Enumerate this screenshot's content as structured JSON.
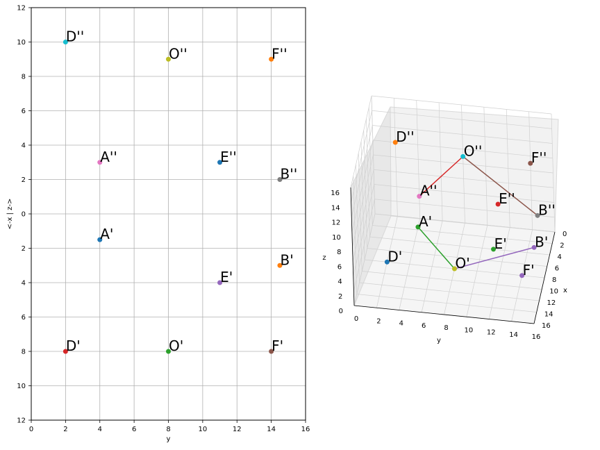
{
  "chart_data": [
    {
      "type": "scatter",
      "panel": "2d-projection",
      "title": "",
      "xlabel": "y",
      "ylabel": "<-x | z->",
      "xlim": [
        0,
        16
      ],
      "ylim": [
        -12,
        12
      ],
      "grid": true,
      "x_ticks": [
        "0",
        "2",
        "4",
        "6",
        "8",
        "10",
        "12",
        "14",
        "16"
      ],
      "y_ticks": [
        "12",
        "10",
        "8",
        "6",
        "4",
        "2",
        "0",
        "2",
        "4",
        "6",
        "8",
        "10",
        "12"
      ],
      "points": [
        {
          "label": "D''",
          "x": 2,
          "y": 10,
          "color": "#17becf"
        },
        {
          "label": "O''",
          "x": 8,
          "y": 9,
          "color": "#bcbd22"
        },
        {
          "label": "F''",
          "x": 14,
          "y": 9,
          "color": "#ff7f0e"
        },
        {
          "label": "A''",
          "x": 4,
          "y": 3,
          "color": "#e377c2"
        },
        {
          "label": "E''",
          "x": 11,
          "y": 3,
          "color": "#1f77b4"
        },
        {
          "label": "B''",
          "x": 14.5,
          "y": 2,
          "color": "#7f7f7f"
        },
        {
          "label": "A'",
          "x": 4,
          "y": -1.5,
          "color": "#1f77b4"
        },
        {
          "label": "B'",
          "x": 14.5,
          "y": -3,
          "color": "#ff7f0e"
        },
        {
          "label": "E'",
          "x": 11,
          "y": -4,
          "color": "#9467bd"
        },
        {
          "label": "D'",
          "x": 2,
          "y": -8,
          "color": "#d62728"
        },
        {
          "label": "O'",
          "x": 8,
          "y": -8,
          "color": "#2ca02c"
        },
        {
          "label": "F'",
          "x": 14,
          "y": -8,
          "color": "#8c564b"
        }
      ]
    },
    {
      "type": "scatter",
      "panel": "3d",
      "title": "",
      "xlabel": "x",
      "ylabel": "y",
      "zlabel": "z",
      "xlim": [
        0,
        16
      ],
      "ylim": [
        0,
        16
      ],
      "zlim": [
        0,
        16
      ],
      "grid": true,
      "x_ticks": [
        "0",
        "2",
        "4",
        "6",
        "8",
        "10",
        "12",
        "14",
        "16"
      ],
      "y_ticks": [
        "0",
        "2",
        "4",
        "6",
        "8",
        "10",
        "12",
        "14",
        "16"
      ],
      "z_ticks": [
        "0",
        "2",
        "4",
        "6",
        "8",
        "10",
        "12",
        "14",
        "16"
      ],
      "points": [
        {
          "label": "D''",
          "x": 0,
          "y": 2,
          "z": 10,
          "color": "#ff7f0e"
        },
        {
          "label": "O''",
          "x": 0,
          "y": 8,
          "z": 9,
          "color": "#17becf"
        },
        {
          "label": "F''",
          "x": 0,
          "y": 14,
          "z": 9,
          "color": "#8c564b"
        },
        {
          "label": "A''",
          "x": 0,
          "y": 4,
          "z": 3,
          "color": "#e377c2"
        },
        {
          "label": "E''",
          "x": 0,
          "y": 11,
          "z": 3,
          "color": "#d62728"
        },
        {
          "label": "B''",
          "x": 0,
          "y": 14.5,
          "z": 2,
          "color": "#7f7f7f"
        },
        {
          "label": "A'",
          "x": 1.5,
          "y": 4,
          "z": 0,
          "color": "#2ca02c"
        },
        {
          "label": "B'",
          "x": 3,
          "y": 14.5,
          "z": 0,
          "color": "#9467bd"
        },
        {
          "label": "E'",
          "x": 4,
          "y": 11,
          "z": 0,
          "color": "#2ca02c"
        },
        {
          "label": "D'",
          "x": 8,
          "y": 2,
          "z": 0,
          "color": "#1f77b4"
        },
        {
          "label": "O'",
          "x": 8,
          "y": 8,
          "z": 0,
          "color": "#bcbd22"
        },
        {
          "label": "F'",
          "x": 8,
          "y": 14,
          "z": 0,
          "color": "#9467bd"
        }
      ],
      "segments": [
        {
          "from": "A''",
          "to": "O''",
          "color": "#d62728"
        },
        {
          "from": "O''",
          "to": "B''",
          "color": "#8c564b"
        },
        {
          "from": "A'",
          "to": "O'",
          "color": "#2ca02c"
        },
        {
          "from": "O'",
          "to": "B'",
          "color": "#9467bd"
        }
      ]
    }
  ]
}
